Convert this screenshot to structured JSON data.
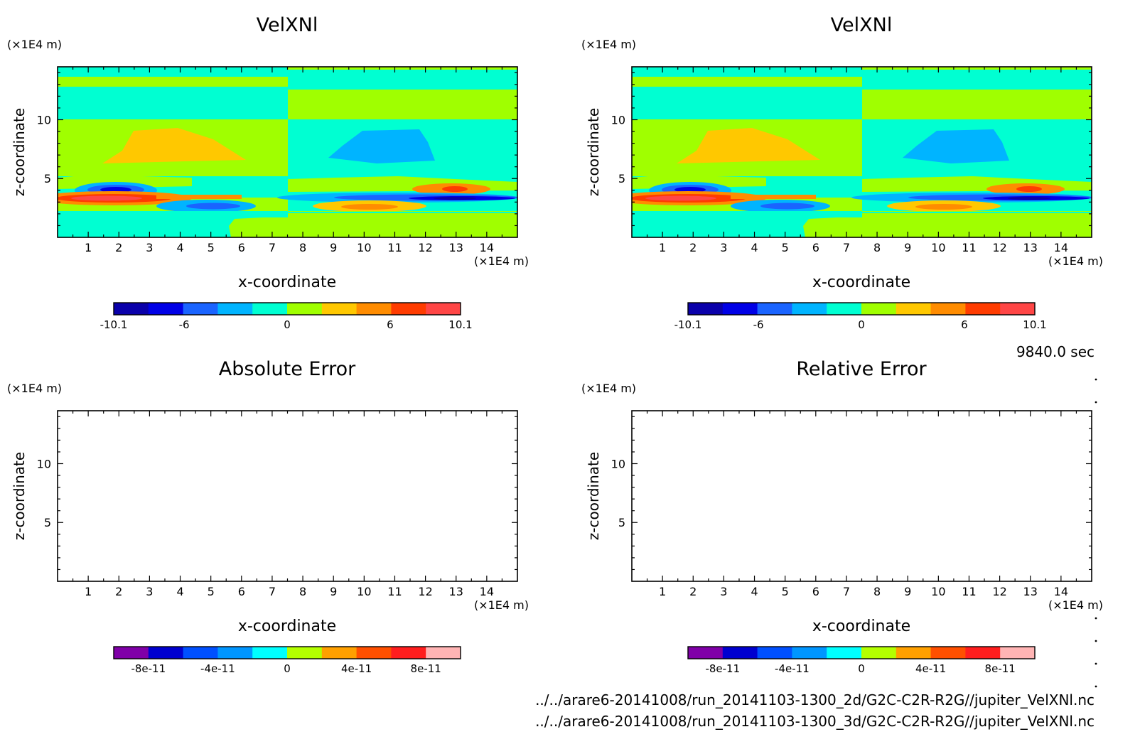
{
  "time_label": "9840.0 sec",
  "files": [
    "../../arare6-20141008/run_20141103-1300_2d/G2C-C2R-R2G//jupiter_VelXNl.nc",
    "../../arare6-20141008/run_20141103-1300_3d/G2C-C2R-R2G//jupiter_VelXNl.nc"
  ],
  "colors": {
    "velocity_scale": [
      "#0a00aa",
      "#0000e6",
      "#1a64ff",
      "#00b4ff",
      "#00ffd2",
      "#a0ff00",
      "#ffc800",
      "#ff8c00",
      "#ff3c00",
      "#ff4646"
    ],
    "error_scale": [
      "#8000a8",
      "#0000d0",
      "#0050ff",
      "#0096ff",
      "#00ffff",
      "#b4ff00",
      "#ffa000",
      "#ff5000",
      "#ff1e1e",
      "#ffb4b4"
    ]
  },
  "chart_data": [
    {
      "id": "vel-2d",
      "type": "heatmap",
      "title": "VelXNl",
      "xlabel": "x-coordinate",
      "ylabel": "z-coordinate",
      "x_unit": "(×1E4 m)",
      "y_unit": "(×1E4 m)",
      "xlim": [
        0,
        15
      ],
      "ylim": [
        0,
        14.5
      ],
      "xticks": [
        1,
        2,
        3,
        4,
        5,
        6,
        7,
        8,
        9,
        10,
        11,
        12,
        13,
        14
      ],
      "yticks": [
        5,
        10
      ],
      "colorbar": {
        "min": -10.1,
        "max": 10.1,
        "levels": 10,
        "tick_values": [
          -10.1,
          -6,
          0,
          6,
          10.1
        ],
        "tick_labels": [
          "-10.1",
          "-6",
          "0",
          "6",
          "10.1"
        ]
      },
      "has_field": true
    },
    {
      "id": "vel-3d",
      "type": "heatmap",
      "title": "VelXNl",
      "xlabel": "x-coordinate",
      "ylabel": "z-coordinate",
      "x_unit": "(×1E4 m)",
      "y_unit": "(×1E4 m)",
      "xlim": [
        0,
        15
      ],
      "ylim": [
        0,
        14.5
      ],
      "xticks": [
        1,
        2,
        3,
        4,
        5,
        6,
        7,
        8,
        9,
        10,
        11,
        12,
        13,
        14
      ],
      "yticks": [
        5,
        10
      ],
      "colorbar": {
        "min": -10.1,
        "max": 10.1,
        "levels": 10,
        "tick_values": [
          -10.1,
          -6,
          0,
          6,
          10.1
        ],
        "tick_labels": [
          "-10.1",
          "-6",
          "0",
          "6",
          "10.1"
        ]
      },
      "has_field": true
    },
    {
      "id": "abs-error",
      "type": "heatmap",
      "title": "Absolute Error",
      "xlabel": "x-coordinate",
      "ylabel": "z-coordinate",
      "x_unit": "(×1E4 m)",
      "y_unit": "(×1E4 m)",
      "xlim": [
        0,
        15
      ],
      "ylim": [
        0,
        14.5
      ],
      "xticks": [
        1,
        2,
        3,
        4,
        5,
        6,
        7,
        8,
        9,
        10,
        11,
        12,
        13,
        14
      ],
      "yticks": [
        5,
        10
      ],
      "colorbar": {
        "min": -1e-10,
        "max": 1e-10,
        "levels": 10,
        "tick_values": [
          -8e-11,
          -4e-11,
          0,
          4e-11,
          8e-11
        ],
        "tick_labels": [
          "-8e-11",
          "-4e-11",
          "0",
          "4e-11",
          "8e-11"
        ]
      },
      "has_field": false
    },
    {
      "id": "rel-error",
      "type": "heatmap",
      "title": "Relative Error",
      "xlabel": "x-coordinate",
      "ylabel": "z-coordinate",
      "x_unit": "(×1E4 m)",
      "y_unit": "(×1E4 m)",
      "xlim": [
        0,
        15
      ],
      "ylim": [
        0,
        14.5
      ],
      "xticks": [
        1,
        2,
        3,
        4,
        5,
        6,
        7,
        8,
        9,
        10,
        11,
        12,
        13,
        14
      ],
      "yticks": [
        5,
        10
      ],
      "colorbar": {
        "min": -1e-10,
        "max": 1e-10,
        "levels": 10,
        "tick_values": [
          -8e-11,
          -4e-11,
          0,
          4e-11,
          8e-11
        ],
        "tick_labels": [
          "-8e-11",
          "-4e-11",
          "0",
          "4e-11",
          "8e-11"
        ]
      },
      "has_field": false
    }
  ]
}
